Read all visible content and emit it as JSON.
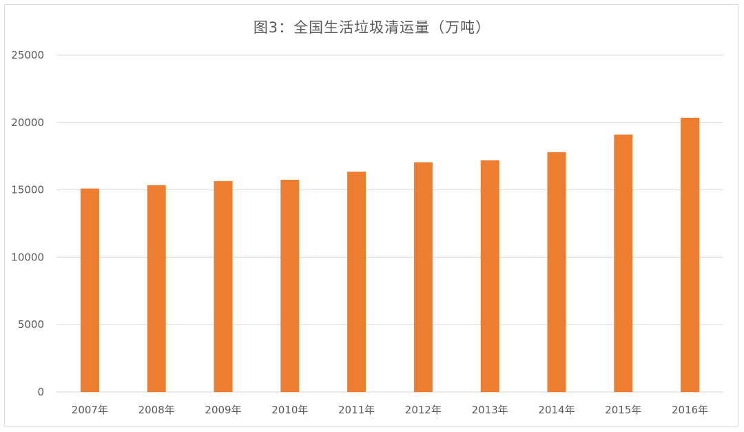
{
  "chart_data": {
    "type": "bar",
    "title": "图3：全国生活垃圾清运量（万吨）",
    "xlabel": "",
    "ylabel": "",
    "categories": [
      "2007年",
      "2008年",
      "2009年",
      "2010年",
      "2011年",
      "2012年",
      "2013年",
      "2014年",
      "2015年",
      "2016年"
    ],
    "values": [
      15100,
      15350,
      15650,
      15750,
      16350,
      17050,
      17200,
      17800,
      19100,
      20350
    ],
    "ylim": [
      0,
      25000
    ],
    "yticks": [
      0,
      5000,
      10000,
      15000,
      20000,
      25000
    ],
    "grid": true,
    "legend": "none",
    "bar_color": "#ED7D31",
    "grid_color": "#D9D9D9",
    "text_color": "#595959"
  }
}
